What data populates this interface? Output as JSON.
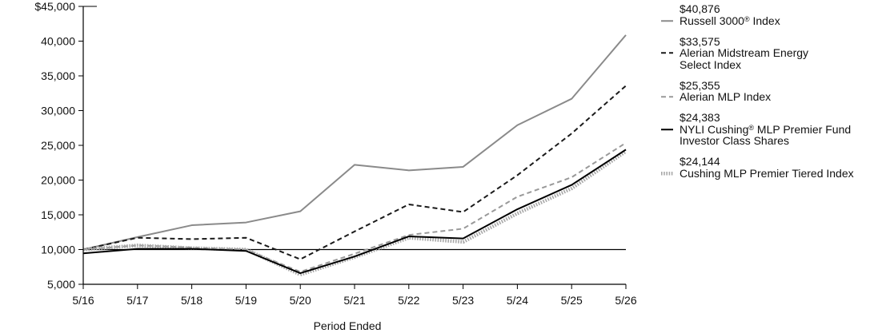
{
  "chart_data": {
    "type": "line",
    "xlabel": "Period Ended",
    "categories": [
      "5/16",
      "5/17",
      "5/18",
      "5/19",
      "5/20",
      "5/21",
      "5/22",
      "5/23",
      "5/24",
      "5/25",
      "5/26"
    ],
    "ylim": [
      5000,
      45000
    ],
    "y_ticks": [
      {
        "value": 45000,
        "label": "$45,000"
      },
      {
        "value": 40000,
        "label": "40,000"
      },
      {
        "value": 35000,
        "label": "35,000"
      },
      {
        "value": 30000,
        "label": "30,000"
      },
      {
        "value": 25000,
        "label": "25,000"
      },
      {
        "value": 20000,
        "label": "20,000"
      },
      {
        "value": 15000,
        "label": "15,000"
      },
      {
        "value": 10000,
        "label": "10,000"
      },
      {
        "value": 5000,
        "label": "5,000"
      }
    ],
    "reference_line": 10000,
    "grid": false,
    "legend_position": "right",
    "series": [
      {
        "name": "Russell 3000® Index",
        "ending_value": "$40,876",
        "color": "#8a8a8a",
        "line_style": "solid",
        "values": [
          10000,
          11800,
          13500,
          13900,
          15500,
          22200,
          21400,
          21900,
          27900,
          31700,
          40876
        ]
      },
      {
        "name": "Alerian Midstream Energy Select Index",
        "ending_value": "$33,575",
        "color": "#1a1a1a",
        "line_style": "dashed",
        "values": [
          10000,
          11700,
          11500,
          11700,
          8600,
          12600,
          16500,
          15400,
          20700,
          26700,
          33575
        ]
      },
      {
        "name": "Alerian MLP Index",
        "ending_value": "$25,355",
        "color": "#999999",
        "line_style": "dashed",
        "values": [
          10000,
          10600,
          10300,
          10000,
          6800,
          9400,
          12100,
          13000,
          17600,
          20400,
          25355
        ]
      },
      {
        "name": "NYLI Cushing® MLP Premier Fund Investor Class Shares",
        "ending_value": "$24,383",
        "color": "#000000",
        "line_style": "solid",
        "values": [
          9450,
          10100,
          10100,
          9800,
          6600,
          9000,
          11900,
          11600,
          15800,
          19300,
          24383
        ]
      },
      {
        "name": "Cushing MLP Premier Tiered Index",
        "ending_value": "$24,144",
        "color": "#a8a8a8",
        "line_style": "dotted",
        "values": [
          10000,
          10600,
          10200,
          10000,
          6400,
          8900,
          11700,
          11100,
          15200,
          18800,
          24144
        ]
      }
    ]
  }
}
